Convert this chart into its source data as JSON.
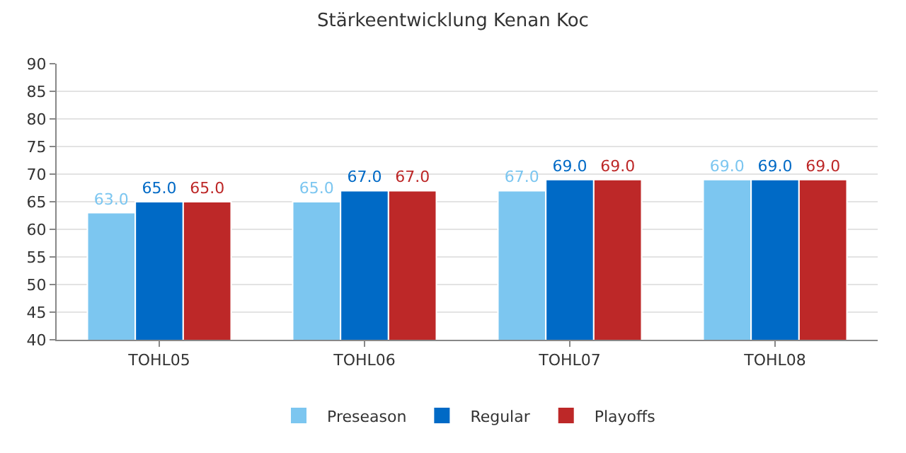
{
  "chart_data": {
    "type": "bar",
    "title": "Stärkeentwicklung Kenan Koc",
    "categories": [
      "TOHL05",
      "TOHL06",
      "TOHL07",
      "TOHL08"
    ],
    "series": [
      {
        "name": "Preseason",
        "color": "#7cc6f0",
        "values": [
          63.0,
          65.0,
          67.0,
          69.0
        ],
        "value_labels": [
          "63.0",
          "65.0",
          "67.0",
          "69.0"
        ]
      },
      {
        "name": "Regular",
        "color": "#006ac6",
        "values": [
          65.0,
          67.0,
          69.0,
          69.0
        ],
        "value_labels": [
          "65.0",
          "67.0",
          "69.0",
          "69.0"
        ]
      },
      {
        "name": "Playoffs",
        "color": "#bd2828",
        "values": [
          65.0,
          67.0,
          69.0,
          69.0
        ],
        "value_labels": [
          "65.0",
          "67.0",
          "69.0",
          "69.0"
        ]
      }
    ],
    "ylim": [
      40,
      90
    ],
    "yticks": [
      40,
      45,
      50,
      55,
      60,
      65,
      70,
      75,
      80,
      85,
      90
    ],
    "grid": "y",
    "legend": "bottom"
  }
}
